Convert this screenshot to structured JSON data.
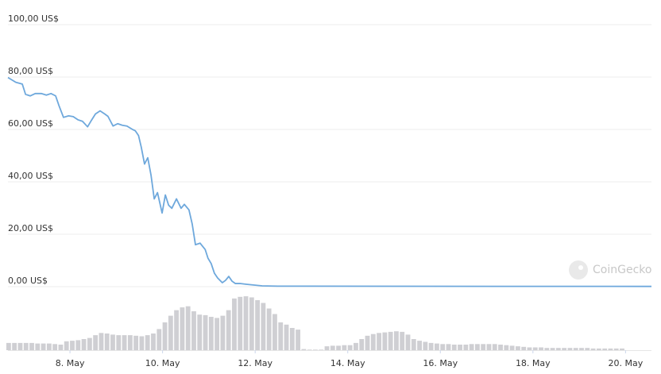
{
  "chart_data": [
    {
      "type": "line",
      "color": "#6ea8dc",
      "grid": true,
      "watermark": "CoinGecko",
      "x": [
        6.66,
        6.83,
        6.97,
        7.04,
        7.14,
        7.25,
        7.38,
        7.49,
        7.59,
        7.69,
        7.76,
        7.86,
        7.97,
        8.07,
        8.17,
        8.27,
        8.38,
        8.45,
        8.55,
        8.65,
        8.75,
        8.82,
        8.93,
        9.03,
        9.13,
        9.23,
        9.34,
        9.41,
        9.48,
        9.54,
        9.61,
        9.68,
        9.75,
        9.82,
        9.89,
        9.99,
        10.06,
        10.13,
        10.2,
        10.3,
        10.4,
        10.47,
        10.57,
        10.64,
        10.71,
        10.81,
        10.92,
        10.98,
        11.05,
        11.12,
        11.19,
        11.29,
        11.36,
        11.43,
        11.5,
        11.57,
        11.67,
        11.81,
        11.98,
        12.15,
        12.49,
        15.07,
        17.64,
        20.56
      ],
      "values": [
        79.8,
        78,
        77.3,
        73.4,
        72.8,
        73.7,
        73.7,
        73.1,
        73.7,
        72.8,
        69.2,
        64.6,
        65.2,
        64.9,
        63.7,
        63.1,
        61.0,
        63.1,
        65.9,
        67.1,
        65.9,
        65.0,
        61.3,
        62.2,
        61.6,
        61.3,
        60.1,
        59.5,
        57.7,
        53.2,
        46.8,
        49.2,
        42.6,
        33.5,
        35.9,
        28.1,
        35.0,
        31.1,
        29.9,
        33.5,
        29.9,
        31.4,
        29.3,
        23.9,
        16.0,
        16.6,
        14.2,
        10.9,
        8.8,
        5.1,
        3.3,
        1.5,
        2.4,
        3.9,
        2.1,
        1.2,
        1.2,
        0.9,
        0.6,
        0.3,
        0.2,
        0.15,
        0.12,
        0.1
      ],
      "xlim": [
        6.66,
        20.56
      ],
      "ylim": [
        0,
        100
      ],
      "yticks": [
        {
          "value": 0,
          "label": "0,00 US$"
        },
        {
          "value": 20,
          "label": "20,00 US$"
        },
        {
          "value": 40,
          "label": "40,00 US$"
        },
        {
          "value": 60,
          "label": "60,00 US$"
        },
        {
          "value": 80,
          "label": "80,00 US$"
        },
        {
          "value": 100,
          "label": "100,00 US$"
        }
      ],
      "xticks": [
        {
          "value": 8,
          "label": "8. May"
        },
        {
          "value": 10,
          "label": "10. May"
        },
        {
          "value": 12,
          "label": "12. May"
        },
        {
          "value": 14,
          "label": "14. May"
        },
        {
          "value": 16,
          "label": "16. May"
        },
        {
          "value": 18,
          "label": "18. May"
        },
        {
          "value": 20,
          "label": "20. May"
        }
      ]
    },
    {
      "type": "bar",
      "color": "#cfcfd3",
      "x": [
        6.625,
        6.75,
        6.875,
        7,
        7.125,
        7.25,
        7.375,
        7.5,
        7.625,
        7.75,
        7.875,
        8,
        8.125,
        8.25,
        8.375,
        8.5,
        8.625,
        8.75,
        8.875,
        9,
        9.125,
        9.25,
        9.375,
        9.5,
        9.625,
        9.75,
        9.875,
        10,
        10.125,
        10.25,
        10.375,
        10.5,
        10.625,
        10.75,
        10.875,
        11,
        11.125,
        11.25,
        11.375,
        11.5,
        11.625,
        11.75,
        11.875,
        12,
        12.125,
        12.25,
        12.375,
        12.5,
        12.625,
        12.75,
        12.875,
        13,
        13.125,
        13.25,
        13.375,
        13.5,
        13.625,
        13.75,
        13.875,
        14,
        14.125,
        14.25,
        14.375,
        14.5,
        14.625,
        14.75,
        14.875,
        15,
        15.125,
        15.25,
        15.375,
        15.5,
        15.625,
        15.75,
        15.875,
        16,
        16.125,
        16.25,
        16.375,
        16.5,
        16.625,
        16.75,
        16.875,
        17,
        17.125,
        17.25,
        17.375,
        17.5,
        17.625,
        17.75,
        17.875,
        18,
        18.125,
        18.25,
        18.375,
        18.5,
        18.625,
        18.75,
        18.875,
        19,
        19.125,
        19.25,
        19.375,
        19.5,
        19.625,
        19.75,
        19.875
      ],
      "values": [
        13,
        13,
        13,
        13,
        13,
        12,
        12,
        12,
        11,
        10,
        16,
        17,
        18,
        20,
        22,
        27,
        31,
        30,
        28,
        27,
        27,
        27,
        26,
        25,
        27,
        30,
        38,
        50,
        62,
        72,
        77,
        79,
        70,
        64,
        63,
        60,
        58,
        62,
        72,
        93,
        96,
        97,
        95,
        90,
        85,
        75,
        65,
        50,
        46,
        40,
        37,
        2,
        1,
        1,
        1,
        7,
        8,
        8,
        9,
        9,
        13,
        20,
        26,
        29,
        31,
        32,
        33,
        34,
        33,
        28,
        20,
        17,
        15,
        13,
        12,
        11,
        11,
        10,
        10,
        10,
        11,
        11,
        11,
        11,
        11,
        10,
        9,
        8,
        7,
        6,
        5,
        5,
        5,
        4,
        4,
        4,
        4,
        4,
        4,
        4,
        4,
        3,
        3,
        3,
        3,
        3,
        3
      ],
      "ylim": [
        0,
        100
      ]
    }
  ]
}
